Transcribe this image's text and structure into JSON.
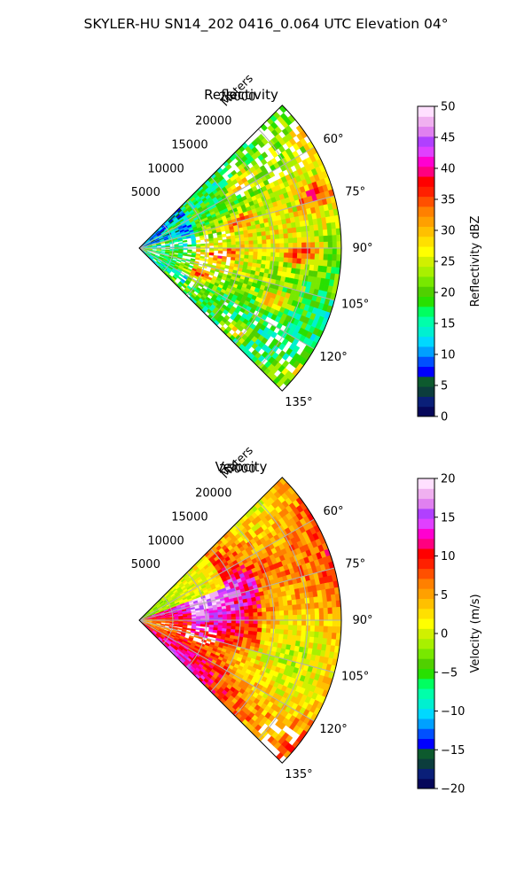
{
  "figure": {
    "title": "SKYLER-HU  SN14_202  0416_0.064 UTC Elevation 04°"
  },
  "chart_data": [
    {
      "type": "heatmap",
      "projection": "polar-sector",
      "title": "Reflectivity",
      "radial_axis_label": "Meters",
      "radial_ticks": [
        5000,
        10000,
        15000,
        20000,
        25000
      ],
      "radial_tick_labels": [
        "5000",
        "10000",
        "15000",
        "20000",
        "25000"
      ],
      "rlim": [
        0,
        30000
      ],
      "angle_ticks": [
        60,
        75,
        90,
        105,
        120,
        135
      ],
      "angle_tick_labels": [
        "60°",
        "75°",
        "90°",
        "105°",
        "120°",
        "135°"
      ],
      "theta_range_deg": [
        45,
        135
      ],
      "grid": true,
      "colorbar": {
        "label": "Reflectivity dBZ",
        "range": [
          0,
          50
        ],
        "ticks": [
          0,
          5,
          10,
          15,
          20,
          25,
          30,
          35,
          40,
          45,
          50
        ],
        "tick_labels": [
          "0",
          "5",
          "10",
          "15",
          "20",
          "25",
          "30",
          "35",
          "40",
          "45",
          "50"
        ],
        "colors": [
          "#06075a",
          "#0a1f78",
          "#0c3d3d",
          "#0d5a2e",
          "#0000ff",
          "#0050ff",
          "#00a0ff",
          "#00d8ff",
          "#00f0d0",
          "#00ffaa",
          "#00ff60",
          "#28e000",
          "#50d000",
          "#78e800",
          "#a8f000",
          "#d0f000",
          "#ffff00",
          "#ffe000",
          "#ffc000",
          "#ffa000",
          "#ff8000",
          "#ff5000",
          "#ff2000",
          "#ff0000",
          "#ff0080",
          "#ff00d0",
          "#e040ff",
          "#b040ff",
          "#e080f0",
          "#f0b0f0",
          "#ffe0ff"
        ]
      },
      "field_character": "mostly 20-30 dBZ (yellow/green) with embedded 35-45 dBZ cells (red/magenta) east and southeast; weaker 10-20 dBZ echoes near the radar"
    },
    {
      "type": "heatmap",
      "projection": "polar-sector",
      "title": "Velocity",
      "radial_axis_label": "Meters",
      "radial_ticks": [
        5000,
        10000,
        15000,
        20000,
        25000
      ],
      "radial_tick_labels": [
        "5000",
        "10000",
        "15000",
        "20000",
        "25000"
      ],
      "rlim": [
        0,
        30000
      ],
      "angle_ticks": [
        60,
        75,
        90,
        105,
        120,
        135
      ],
      "angle_tick_labels": [
        "60°",
        "75°",
        "90°",
        "105°",
        "120°",
        "135°"
      ],
      "theta_range_deg": [
        45,
        135
      ],
      "grid": true,
      "colorbar": {
        "label": "Velocity (m/s)",
        "range": [
          -20,
          20
        ],
        "ticks": [
          -20,
          -15,
          -10,
          -5,
          0,
          5,
          10,
          15,
          20
        ],
        "tick_labels": [
          "−20",
          "−15",
          "−10",
          "−5",
          "0",
          "5",
          "10",
          "15",
          "20"
        ],
        "colors": [
          "#06075a",
          "#0a1f78",
          "#0c3d3d",
          "#0d5a2e",
          "#0000ff",
          "#0050ff",
          "#00a0ff",
          "#00d8ff",
          "#00f0d0",
          "#00ffaa",
          "#00ff60",
          "#28e000",
          "#50d000",
          "#78e800",
          "#a8f000",
          "#d0f000",
          "#ffff00",
          "#ffe000",
          "#ffc000",
          "#ffa000",
          "#ff8000",
          "#ff5000",
          "#ff2000",
          "#ff0000",
          "#ff0080",
          "#ff00d0",
          "#e040ff",
          "#b040ff",
          "#e080f0",
          "#f0b0f0",
          "#ffe0ff"
        ]
      },
      "field_character": "mostly 5-12 m/s (orange/red) with a 12-16 m/s (magenta/violet) band in the middle ranges; -5 to 0 m/s (green/yellow) near the radar to the north-east"
    }
  ]
}
